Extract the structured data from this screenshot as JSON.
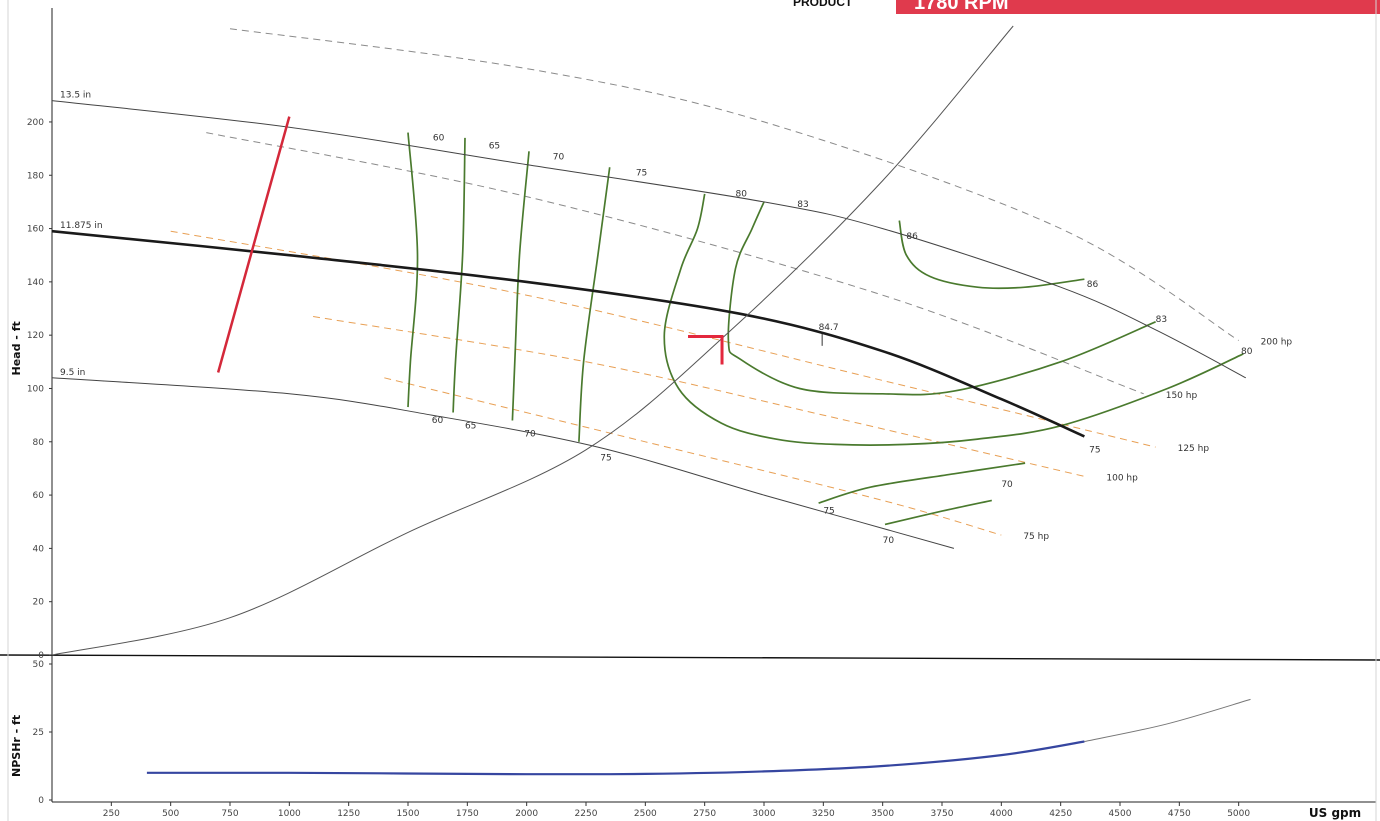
{
  "header": {
    "product_label": "PRODUCT",
    "speed_label": "1780 RPM",
    "accent_color": "#e03a4d"
  },
  "chart_data": [
    {
      "type": "line",
      "id": "head",
      "ylabel": "Head - ft",
      "xlim": [
        0,
        5250
      ],
      "ylim": [
        0,
        236
      ],
      "y_ticks": [
        "0",
        "20",
        "40",
        "60",
        "80",
        "100",
        "120",
        "140",
        "160",
        "180",
        "200"
      ],
      "grid": false,
      "impellers": [
        {
          "label": "13.5 in",
          "x": [
            0,
            1000,
            2000,
            3000,
            3500,
            4250,
            4650,
            5030
          ],
          "y": [
            208,
            198,
            184,
            170,
            160,
            138,
            122,
            104
          ]
        },
        {
          "label": "11.875 in",
          "x": [
            0,
            1000,
            2000,
            2900,
            3500,
            4000,
            4350
          ],
          "y": [
            159,
            150,
            140,
            128,
            114,
            96,
            82
          ]
        },
        {
          "label": "9.5 in",
          "x": [
            0,
            1000,
            1600,
            2300,
            3000,
            3400,
            3800
          ],
          "y": [
            104,
            98,
            90,
            78,
            60,
            50,
            40
          ]
        }
      ],
      "efficiency_labels": [
        {
          "value": "60",
          "x": 1605,
          "y": 193
        },
        {
          "value": "65",
          "x": 1840,
          "y": 190
        },
        {
          "value": "70",
          "x": 2110,
          "y": 186
        },
        {
          "value": "75",
          "x": 2460,
          "y": 180
        },
        {
          "value": "80",
          "x": 2880,
          "y": 172
        },
        {
          "value": "83",
          "x": 3140,
          "y": 168
        },
        {
          "value": "86",
          "x": 3600,
          "y": 156
        },
        {
          "value": "86",
          "x": 4360,
          "y": 138
        },
        {
          "value": "83",
          "x": 4650,
          "y": 125
        },
        {
          "value": "80",
          "x": 5010,
          "y": 113
        },
        {
          "value": "60",
          "x": 1600,
          "y": 87
        },
        {
          "value": "65",
          "x": 1740,
          "y": 85
        },
        {
          "value": "70",
          "x": 1990,
          "y": 82
        },
        {
          "value": "75",
          "x": 2310,
          "y": 73
        },
        {
          "value": "75",
          "x": 4370,
          "y": 76
        },
        {
          "value": "70",
          "x": 4000,
          "y": 63
        },
        {
          "value": "75",
          "x": 3250,
          "y": 53
        },
        {
          "value": "70",
          "x": 3500,
          "y": 42
        }
      ],
      "efficiency_islands": [
        {
          "x": [
            1500,
            1540,
            1510,
            1500
          ],
          "y": [
            196,
            150,
            110,
            93
          ]
        },
        {
          "x": [
            1740,
            1730,
            1700,
            1690
          ],
          "y": [
            194,
            150,
            110,
            91
          ]
        },
        {
          "x": [
            2010,
            1970,
            1950,
            1940
          ],
          "y": [
            189,
            150,
            110,
            88
          ]
        },
        {
          "x": [
            2350,
            2300,
            2240,
            2220
          ],
          "y": [
            183,
            150,
            110,
            80
          ]
        },
        {
          "x": [
            2750,
            2720,
            2650,
            2580,
            2640,
            2820,
            3050,
            3300,
            3600,
            3900,
            4250,
            4700,
            5020
          ],
          "y": [
            173,
            160,
            145,
            120,
            100,
            87,
            81,
            79,
            79,
            81,
            86,
            100,
            113
          ]
        },
        {
          "x": [
            3000,
            2950,
            2880,
            2850,
            2900,
            3150,
            3500,
            3800,
            4250,
            4650
          ],
          "y": [
            170,
            160,
            145,
            118,
            111,
            100,
            98,
            99,
            110,
            125
          ]
        },
        {
          "x": [
            3570,
            3600,
            3700,
            3900,
            4100,
            4350
          ],
          "y": [
            163,
            150,
            142,
            138,
            138,
            141
          ]
        },
        {
          "x": [
            3230,
            3450,
            3800,
            4100
          ],
          "y": [
            57,
            63,
            68,
            72
          ]
        },
        {
          "x": [
            3510,
            3750,
            3960
          ],
          "y": [
            49,
            54,
            58
          ]
        }
      ],
      "power_lines": [
        {
          "label": "200 hp",
          "x": [
            750,
            2000,
            3000,
            4250,
            5000
          ],
          "y": [
            235,
            220,
            200,
            160,
            118
          ]
        },
        {
          "label": "150 hp",
          "x": [
            650,
            2000,
            3500,
            4600
          ],
          "y": [
            196,
            172,
            135,
            98
          ]
        },
        {
          "label": "125 hp",
          "x": [
            500,
            2000,
            3500,
            4650
          ],
          "y": [
            159,
            135,
            103,
            78
          ]
        },
        {
          "label": "100 hp",
          "x": [
            1100,
            2250,
            3250,
            4350
          ],
          "y": [
            127,
            110,
            90,
            67
          ]
        },
        {
          "label": "75 hp",
          "x": [
            1400,
            2500,
            3500,
            4000
          ],
          "y": [
            104,
            80,
            58,
            45
          ]
        }
      ],
      "power_label_values": [
        "200 hp",
        "150 hp",
        "125 hp",
        "100 hp",
        "75 hp"
      ],
      "system_curve": {
        "x": [
          0,
          750,
          1500,
          2250,
          2850,
          3500,
          4050
        ],
        "y": [
          0,
          14,
          46,
          77,
          121,
          178,
          236
        ]
      },
      "duty_point": {
        "x": 2840,
        "y": 121,
        "label": "84.7"
      },
      "npsh_limit_line": {
        "x": [
          1000,
          700
        ],
        "y": [
          202,
          106
        ]
      }
    },
    {
      "type": "line",
      "id": "npsh",
      "ylabel": "NPSHr - ft",
      "xlabel": "US gpm",
      "xlim": [
        0,
        5250
      ],
      "ylim": [
        0,
        50
      ],
      "y_ticks": [
        "0",
        "25",
        "50"
      ],
      "x_ticks": [
        "250",
        "500",
        "750",
        "1000",
        "1250",
        "1500",
        "1750",
        "2000",
        "2250",
        "2500",
        "2750",
        "3000",
        "3250",
        "3500",
        "3750",
        "4000",
        "4250",
        "4500",
        "4750",
        "5000"
      ],
      "series": [
        {
          "x": [
            400,
            1000,
            2000,
            2500,
            3000,
            3500,
            4000,
            4350,
            4700,
            5050
          ],
          "y": [
            10,
            10,
            9.5,
            9.6,
            10.5,
            12.5,
            16.5,
            21.5,
            28,
            37
          ]
        }
      ]
    }
  ]
}
